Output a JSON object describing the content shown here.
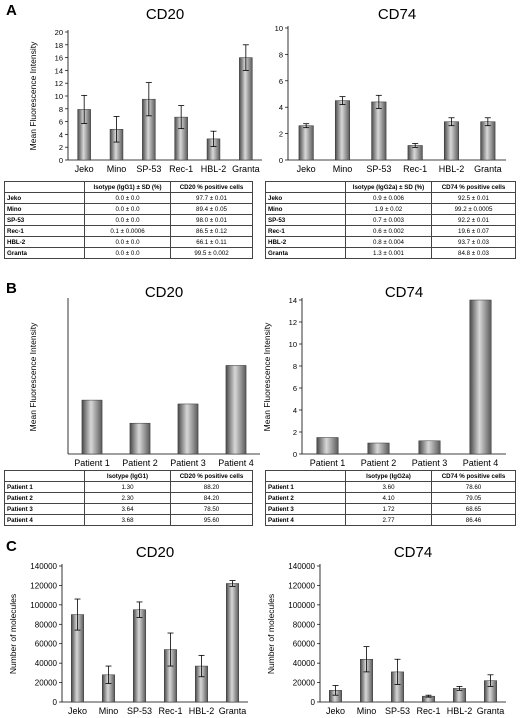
{
  "panels": {
    "A": {
      "letter": "A",
      "table_left": {
        "columns": [
          "",
          "Isotype (IgG1) ± SD (%)",
          "CD20 % positive cells"
        ],
        "rows": [
          [
            "Jeko",
            "0.0 ± 0.0",
            "97.7 ± 0.01"
          ],
          [
            "Mino",
            "0.0 ± 0.0",
            "89.4 ± 0.05"
          ],
          [
            "SP-53",
            "0.0 ± 0.0",
            "98.0 ± 0.01"
          ],
          [
            "Rec-1",
            "0.1 ± 0.0006",
            "86.5 ± 0.12"
          ],
          [
            "HBL-2",
            "0.0 ± 0.0",
            "66.1 ± 0.11"
          ],
          [
            "Granta",
            "0.0 ± 0.0",
            "99.5 ± 0.002"
          ]
        ]
      },
      "table_right": {
        "columns": [
          "",
          "Isotype (IgG2a) ± SD (%)",
          "CD74 % positive cells"
        ],
        "rows": [
          [
            "Jeko",
            "0.9 ± 0.006",
            "92.5 ± 0.01"
          ],
          [
            "Mino",
            "1.9 ± 0.02",
            "99.2 ± 0.0005"
          ],
          [
            "SP-53",
            "0.7 ± 0.003",
            "92.2 ± 0.01"
          ],
          [
            "Rec-1",
            "0.6 ± 0.002",
            "19.6 ± 0.07"
          ],
          [
            "HBL-2",
            "0.8 ± 0.004",
            "93.7 ± 0.03"
          ],
          [
            "Granta",
            "1.3 ± 0.001",
            "84.8 ± 0.03"
          ]
        ]
      }
    },
    "B": {
      "letter": "B",
      "table_left": {
        "columns": [
          "",
          "Isotype (IgG1)",
          "CD20 % positive cells"
        ],
        "rows": [
          [
            "Patient 1",
            "1.30",
            "88.20"
          ],
          [
            "Patient 2",
            "2.30",
            "84.20"
          ],
          [
            "Patient 3",
            "3.64",
            "78.50"
          ],
          [
            "Patient 4",
            "3.68",
            "95.60"
          ]
        ]
      },
      "table_right": {
        "columns": [
          "",
          "Isotype (IgG2a)",
          "CD74 % positive cells"
        ],
        "rows": [
          [
            "Patient 1",
            "3.60",
            "78.60"
          ],
          [
            "Patient 2",
            "4.10",
            "79.05"
          ],
          [
            "Patient 3",
            "1.72",
            "68.65"
          ],
          [
            "Patient 4",
            "2.77",
            "86.46"
          ]
        ]
      }
    },
    "C": {
      "letter": "C"
    }
  },
  "chart_data": [
    {
      "id": "A-CD20",
      "type": "bar",
      "title": "CD20",
      "ylabel": "Mean Fluorescence Intensity",
      "xlabel": "",
      "categories": [
        "Jeko",
        "Mino",
        "SP-53",
        "Rec-1",
        "HBL-2",
        "Granta"
      ],
      "values": [
        7.9,
        4.8,
        9.5,
        6.7,
        3.3,
        16.0
      ],
      "errors": [
        2.2,
        2.0,
        2.6,
        1.8,
        1.2,
        2.0
      ],
      "ylim": [
        0,
        20
      ],
      "yticks": [
        "0",
        "2",
        "4",
        "6",
        "8",
        "10",
        "12",
        "14",
        "16",
        "18",
        "20"
      ],
      "grid": false
    },
    {
      "id": "A-CD74",
      "type": "bar",
      "title": "CD74",
      "ylabel": "",
      "xlabel": "",
      "categories": [
        "Jeko",
        "Mino",
        "SP-53",
        "Rec-1",
        "HBL-2",
        "Granta"
      ],
      "values": [
        2.6,
        4.5,
        4.4,
        1.1,
        2.9,
        2.9
      ],
      "errors": [
        0.15,
        0.3,
        0.5,
        0.15,
        0.3,
        0.3
      ],
      "ylim": [
        0,
        10
      ],
      "yticks": [
        "0",
        "2",
        "4",
        "6",
        "8",
        "10"
      ],
      "grid": false
    },
    {
      "id": "B-CD20",
      "type": "bar",
      "title": "CD20",
      "ylabel": "Mean Fluorescence Intensity",
      "xlabel": "",
      "categories": [
        "Patient 1",
        "Patient 2",
        "Patient 3",
        "Patient 4"
      ],
      "values": [
        4.2,
        2.4,
        3.9,
        6.9
      ],
      "errors": [],
      "ylim": [
        0,
        12
      ],
      "yticks": [],
      "grid": false
    },
    {
      "id": "B-CD74",
      "type": "bar",
      "title": "CD74",
      "ylabel": "Mean Fluorescence Intensity",
      "xlabel": "",
      "categories": [
        "Patient 1",
        "Patient 2",
        "Patient 3",
        "Patient 4"
      ],
      "values": [
        1.5,
        1.0,
        1.2,
        14.0
      ],
      "errors": [],
      "ylim": [
        0,
        14
      ],
      "yticks": [
        "0",
        "2",
        "4",
        "6",
        "8",
        "10",
        "12",
        "14"
      ],
      "grid": false
    },
    {
      "id": "C-CD20",
      "type": "bar",
      "title": "CD20",
      "ylabel": "Number of molecules",
      "xlabel": "",
      "categories": [
        "Jeko",
        "Mino",
        "SP-53",
        "Rec-1",
        "HBL-2",
        "Granta"
      ],
      "values": [
        90000,
        28000,
        95000,
        54000,
        37000,
        122000
      ],
      "errors": [
        16000,
        9000,
        8000,
        17000,
        11000,
        3000
      ],
      "ylim": [
        0,
        140000
      ],
      "yticks": [
        "0",
        "20000",
        "40000",
        "60000",
        "80000",
        "100000",
        "120000",
        "140000"
      ],
      "grid": false
    },
    {
      "id": "C-CD74",
      "type": "bar",
      "title": "CD74",
      "ylabel": "Number of molecules",
      "xlabel": "",
      "categories": [
        "Jeko",
        "Mino",
        "SP-53",
        "Rec-1",
        "HBL-2",
        "Granta"
      ],
      "values": [
        12000,
        44000,
        31000,
        6000,
        14000,
        22000
      ],
      "errors": [
        5000,
        13000,
        13000,
        1000,
        2000,
        6000
      ],
      "ylim": [
        0,
        140000
      ],
      "yticks": [
        "0",
        "20000",
        "40000",
        "60000",
        "80000",
        "100000",
        "120000",
        "140000"
      ],
      "grid": false
    }
  ]
}
